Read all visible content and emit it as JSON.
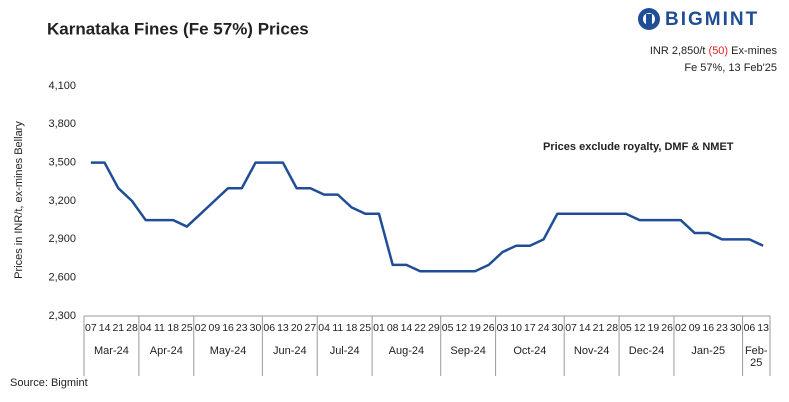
{
  "chart_data": {
    "type": "line",
    "title": "Karnataka Fines (Fe 57%) Prices",
    "brand": "BIGMINT",
    "header": {
      "price": "INR 2,850/t",
      "change": "(50)",
      "basis": "Ex-mines",
      "detail": "Fe 57%, 13 Feb'25"
    },
    "annotation": "Prices exclude royalty, DMF & NMET",
    "y_label": "Prices in INR/t, ex-mines Bellary",
    "source": "Source: Bigmint",
    "categories": [
      "07",
      "14",
      "21",
      "28",
      "04",
      "11",
      "18",
      "25",
      "02",
      "09",
      "16",
      "23",
      "30",
      "06",
      "13",
      "20",
      "27",
      "04",
      "11",
      "18",
      "25",
      "01",
      "08",
      "14",
      "22",
      "29",
      "05",
      "12",
      "19",
      "26",
      "03",
      "10",
      "17",
      "24",
      "30",
      "07",
      "14",
      "21",
      "28",
      "05",
      "12",
      "19",
      "26",
      "02",
      "09",
      "16",
      "23",
      "30",
      "06",
      "13"
    ],
    "category_groups": [
      {
        "label": "Mar-24",
        "size": 4
      },
      {
        "label": "Apr-24",
        "size": 4
      },
      {
        "label": "May-24",
        "size": 5
      },
      {
        "label": "Jun-24",
        "size": 4
      },
      {
        "label": "Jul-24",
        "size": 4
      },
      {
        "label": "Aug-24",
        "size": 5
      },
      {
        "label": "Sep-24",
        "size": 4
      },
      {
        "label": "Oct-24",
        "size": 5
      },
      {
        "label": "Nov-24",
        "size": 4
      },
      {
        "label": "Dec-24",
        "size": 4
      },
      {
        "label": "Jan-25",
        "size": 5
      },
      {
        "label": "Feb-25",
        "size": 2
      }
    ],
    "series": [
      {
        "name": "Karnataka Fines (Fe 57%)",
        "color": "#1f4e96",
        "values": [
          3500,
          3500,
          3300,
          3200,
          3050,
          3050,
          3050,
          3000,
          3100,
          3200,
          3300,
          3300,
          3500,
          3500,
          3500,
          3300,
          3300,
          3250,
          3250,
          3150,
          3100,
          3100,
          2700,
          2700,
          2650,
          2650,
          2650,
          2650,
          2650,
          2700,
          2800,
          2850,
          2850,
          2900,
          3100,
          3100,
          3100,
          3100,
          3100,
          3100,
          3050,
          3050,
          3050,
          3050,
          2950,
          2950,
          2900,
          2900,
          2900,
          2850
        ]
      }
    ],
    "ylim": [
      2300,
      4100
    ],
    "yticks": [
      {
        "value": 2300,
        "label": "2,300"
      },
      {
        "value": 2600,
        "label": "2,600"
      },
      {
        "value": 2900,
        "label": "2,900"
      },
      {
        "value": 3200,
        "label": "3,200"
      },
      {
        "value": 3500,
        "label": "3,500"
      },
      {
        "value": 3800,
        "label": "3,800"
      },
      {
        "value": 4100,
        "label": "4,100"
      }
    ],
    "grid": false
  }
}
